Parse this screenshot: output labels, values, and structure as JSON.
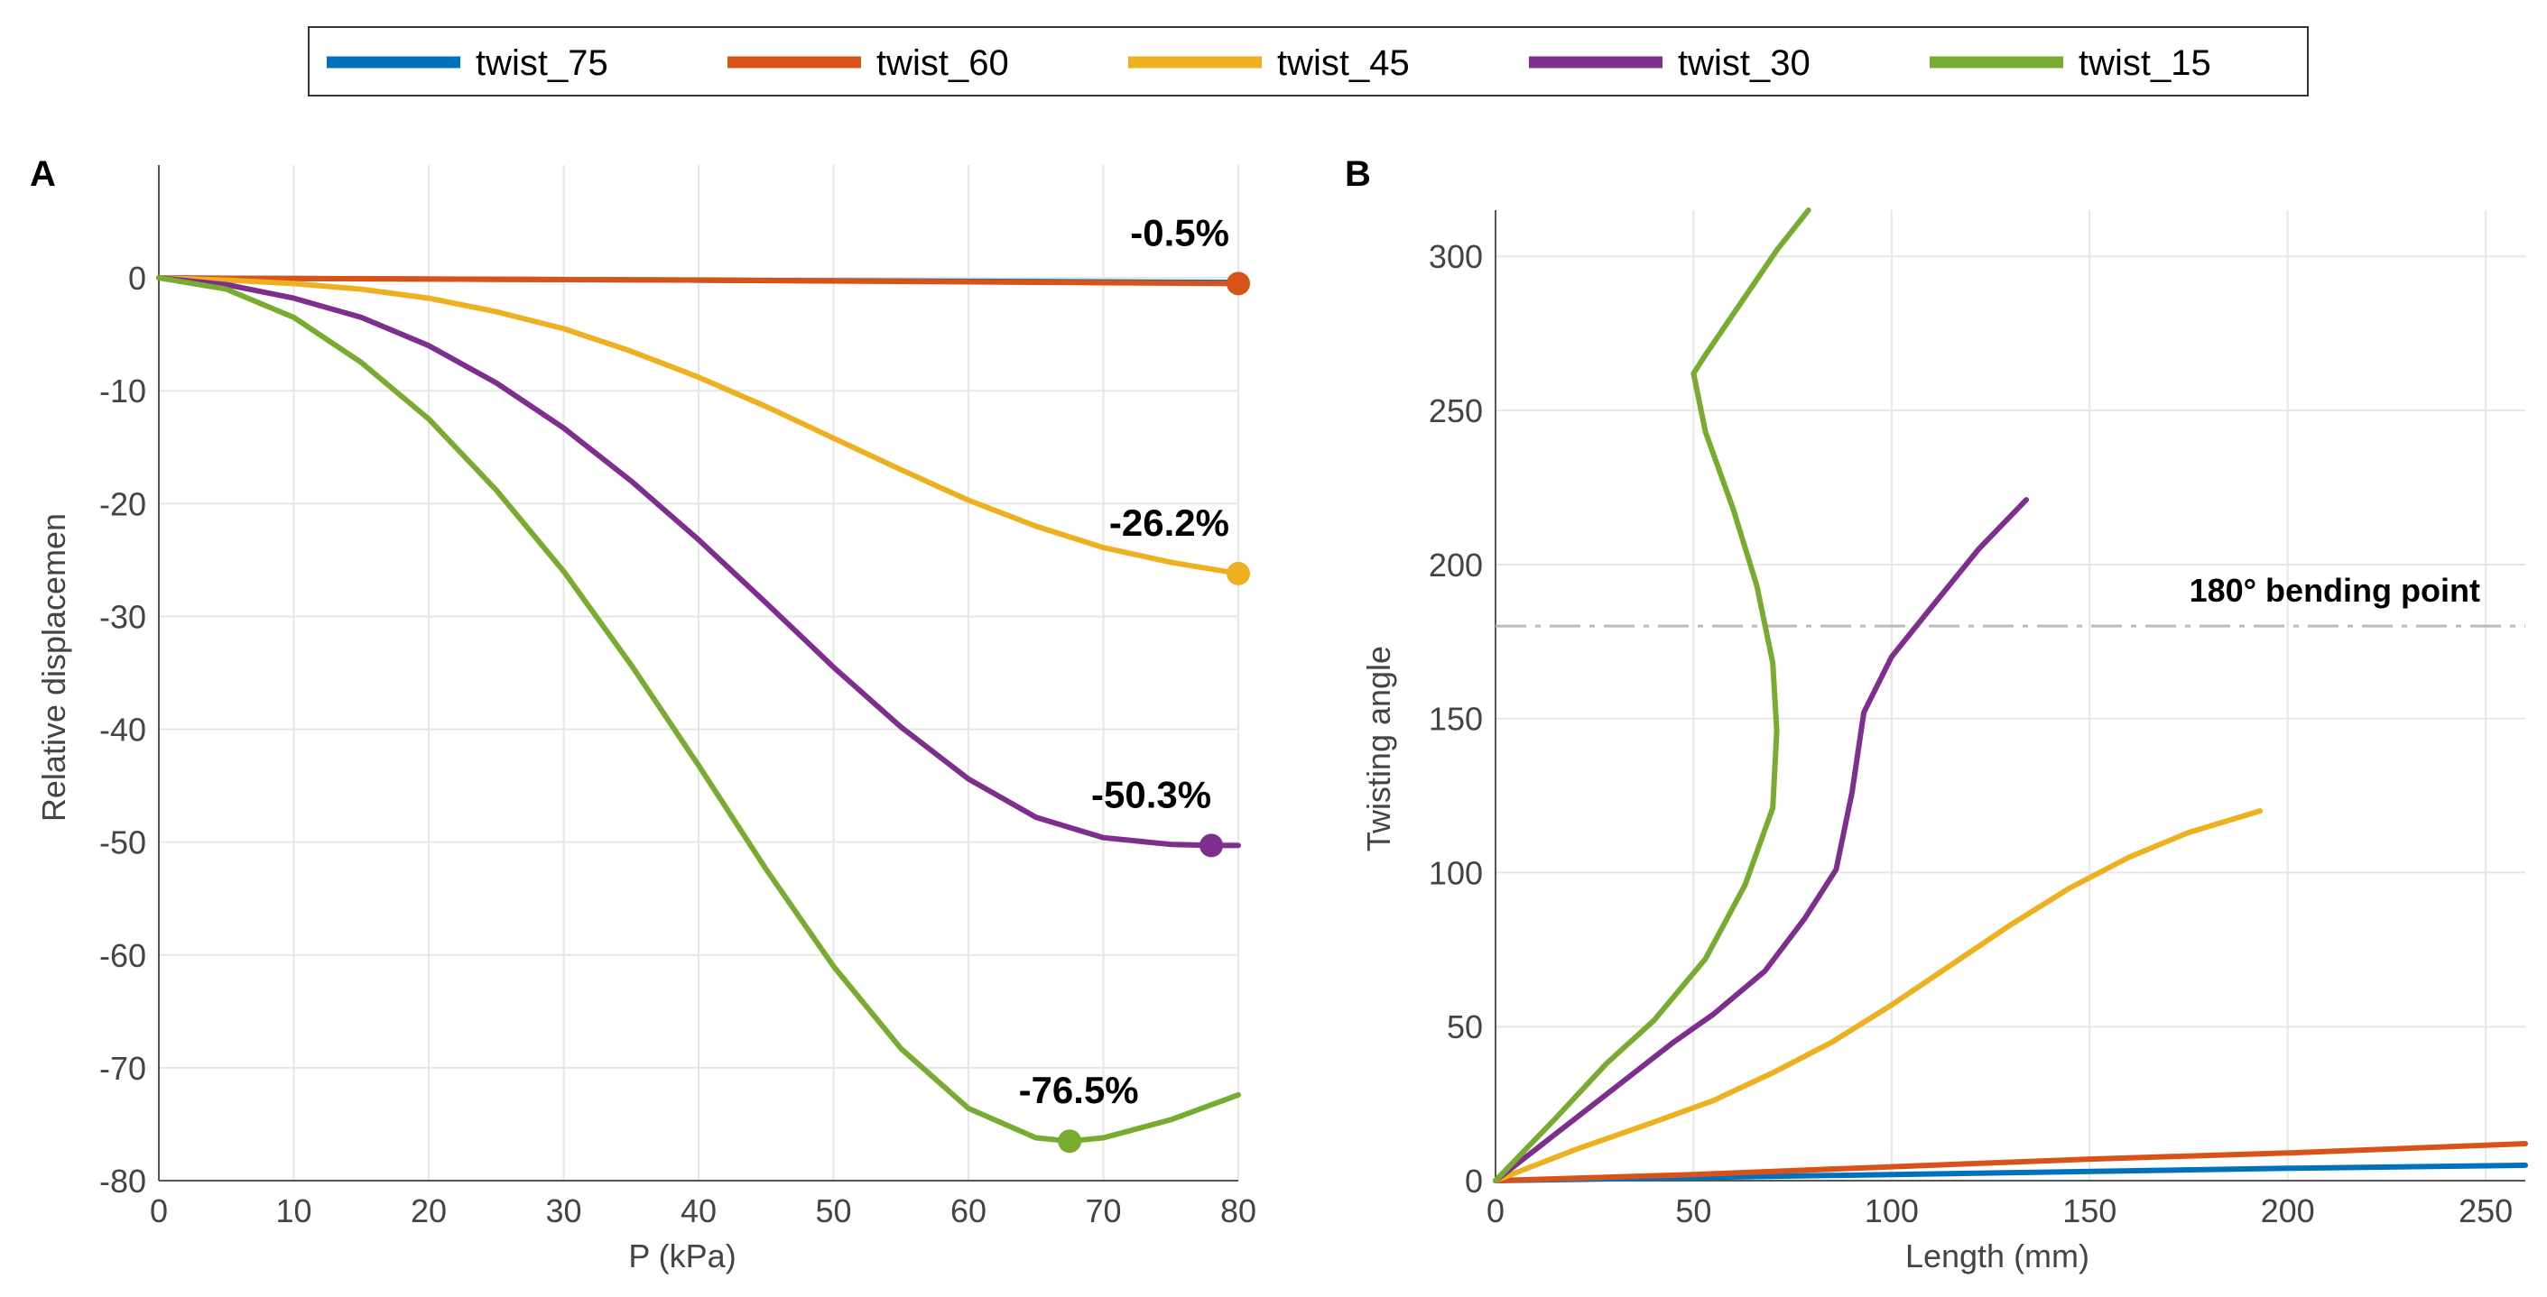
{
  "series_names": [
    "twist_75",
    "twist_60",
    "twist_45",
    "twist_30",
    "twist_15"
  ],
  "series_colors": {
    "twist_75": "#0072BD",
    "twist_60": "#D95319",
    "twist_45": "#EDB120",
    "twist_30": "#7E2F8E",
    "twist_15": "#77AC30"
  },
  "chart_data": [
    {
      "panel": "A",
      "type": "line",
      "xlabel": "P (kPa)",
      "ylabel": "Relative displacemen",
      "xlim": [
        0,
        80
      ],
      "ylim": [
        -80,
        10
      ],
      "xticks": [
        0,
        10,
        20,
        30,
        40,
        50,
        60,
        70,
        80
      ],
      "yticks": [
        0,
        -10,
        -20,
        -30,
        -40,
        -50,
        -60,
        -70,
        -80
      ],
      "ytick_labels": [
        "0",
        "-10",
        "-20",
        "-30",
        "-40",
        "-50",
        "-60",
        "-70",
        "-80"
      ],
      "grid": true,
      "series": [
        {
          "name": "twist_75",
          "x": [
            0,
            20,
            40,
            60,
            80
          ],
          "y": [
            0,
            -0.1,
            -0.2,
            -0.3,
            -0.4
          ]
        },
        {
          "name": "twist_60",
          "x": [
            0,
            20,
            40,
            60,
            80
          ],
          "y": [
            0,
            -0.1,
            -0.2,
            -0.35,
            -0.5
          ],
          "marker": {
            "x": 80,
            "y": -0.5,
            "label": "-0.5%"
          }
        },
        {
          "name": "twist_45",
          "x": [
            0,
            5,
            10,
            15,
            20,
            25,
            30,
            35,
            40,
            45,
            50,
            55,
            60,
            65,
            70,
            75,
            80
          ],
          "y": [
            0,
            -0.2,
            -0.5,
            -1.0,
            -1.8,
            -3.0,
            -4.5,
            -6.5,
            -8.8,
            -11.4,
            -14.2,
            -17.0,
            -19.7,
            -22.0,
            -23.9,
            -25.2,
            -26.2
          ],
          "marker": {
            "x": 80,
            "y": -26.2,
            "label": "-26.2%"
          }
        },
        {
          "name": "twist_30",
          "x": [
            0,
            5,
            10,
            15,
            20,
            25,
            30,
            35,
            40,
            45,
            50,
            55,
            60,
            65,
            70,
            75,
            78,
            80
          ],
          "y": [
            0,
            -0.6,
            -1.8,
            -3.5,
            -6.0,
            -9.3,
            -13.3,
            -18.0,
            -23.2,
            -28.8,
            -34.5,
            -39.8,
            -44.4,
            -47.8,
            -49.6,
            -50.2,
            -50.3,
            -50.3
          ],
          "marker": {
            "x": 78,
            "y": -50.3,
            "label": "-50.3%"
          }
        },
        {
          "name": "twist_15",
          "x": [
            0,
            5,
            10,
            15,
            20,
            25,
            30,
            35,
            40,
            45,
            50,
            55,
            60,
            65,
            67.5,
            70,
            75,
            80
          ],
          "y": [
            0,
            -1.0,
            -3.5,
            -7.5,
            -12.5,
            -18.8,
            -26.0,
            -34.3,
            -43.2,
            -52.4,
            -61.0,
            -68.3,
            -73.6,
            -76.2,
            -76.5,
            -76.2,
            -74.6,
            -72.4
          ],
          "marker": {
            "x": 67.5,
            "y": -76.5,
            "label": "-76.5%"
          }
        }
      ]
    },
    {
      "panel": "B",
      "type": "line",
      "xlabel": "Length (mm)",
      "ylabel": "Twisting angle",
      "xlim": [
        0,
        260
      ],
      "ylim": [
        0,
        315
      ],
      "xticks": [
        0,
        50,
        100,
        150,
        200,
        250
      ],
      "yticks": [
        0,
        50,
        100,
        150,
        200,
        250,
        300
      ],
      "grid": true,
      "reference_line": {
        "y": 180,
        "label": "180° bending point"
      },
      "series": [
        {
          "name": "twist_75",
          "x": [
            0,
            100,
            200,
            260
          ],
          "y": [
            0,
            2,
            4,
            5
          ]
        },
        {
          "name": "twist_60",
          "x": [
            0,
            50,
            100,
            150,
            200,
            260
          ],
          "y": [
            0,
            2,
            4.5,
            7,
            9,
            12
          ]
        },
        {
          "name": "twist_45",
          "x": [
            0,
            20,
            40,
            55,
            70,
            85,
            100,
            115,
            130,
            145,
            160,
            175,
            193
          ],
          "y": [
            0,
            10,
            19,
            26,
            35,
            45,
            57,
            70,
            83,
            95,
            105,
            113,
            120
          ]
        },
        {
          "name": "twist_30",
          "x": [
            0,
            15,
            30,
            45,
            55,
            68,
            78,
            86,
            90,
            93,
            100,
            110,
            122,
            134
          ],
          "y": [
            0,
            15,
            30,
            45,
            54,
            68,
            85,
            101,
            126,
            152,
            170,
            186,
            205,
            221
          ]
        },
        {
          "name": "twist_15",
          "x": [
            0,
            15,
            28,
            40,
            53,
            63,
            70,
            71,
            70,
            66,
            60,
            53,
            50,
            53,
            62,
            71,
            79
          ],
          "y": [
            0,
            20,
            38,
            52,
            72,
            96,
            121,
            146,
            168,
            193,
            218,
            243,
            262,
            268,
            285,
            302,
            315
          ]
        }
      ]
    }
  ]
}
